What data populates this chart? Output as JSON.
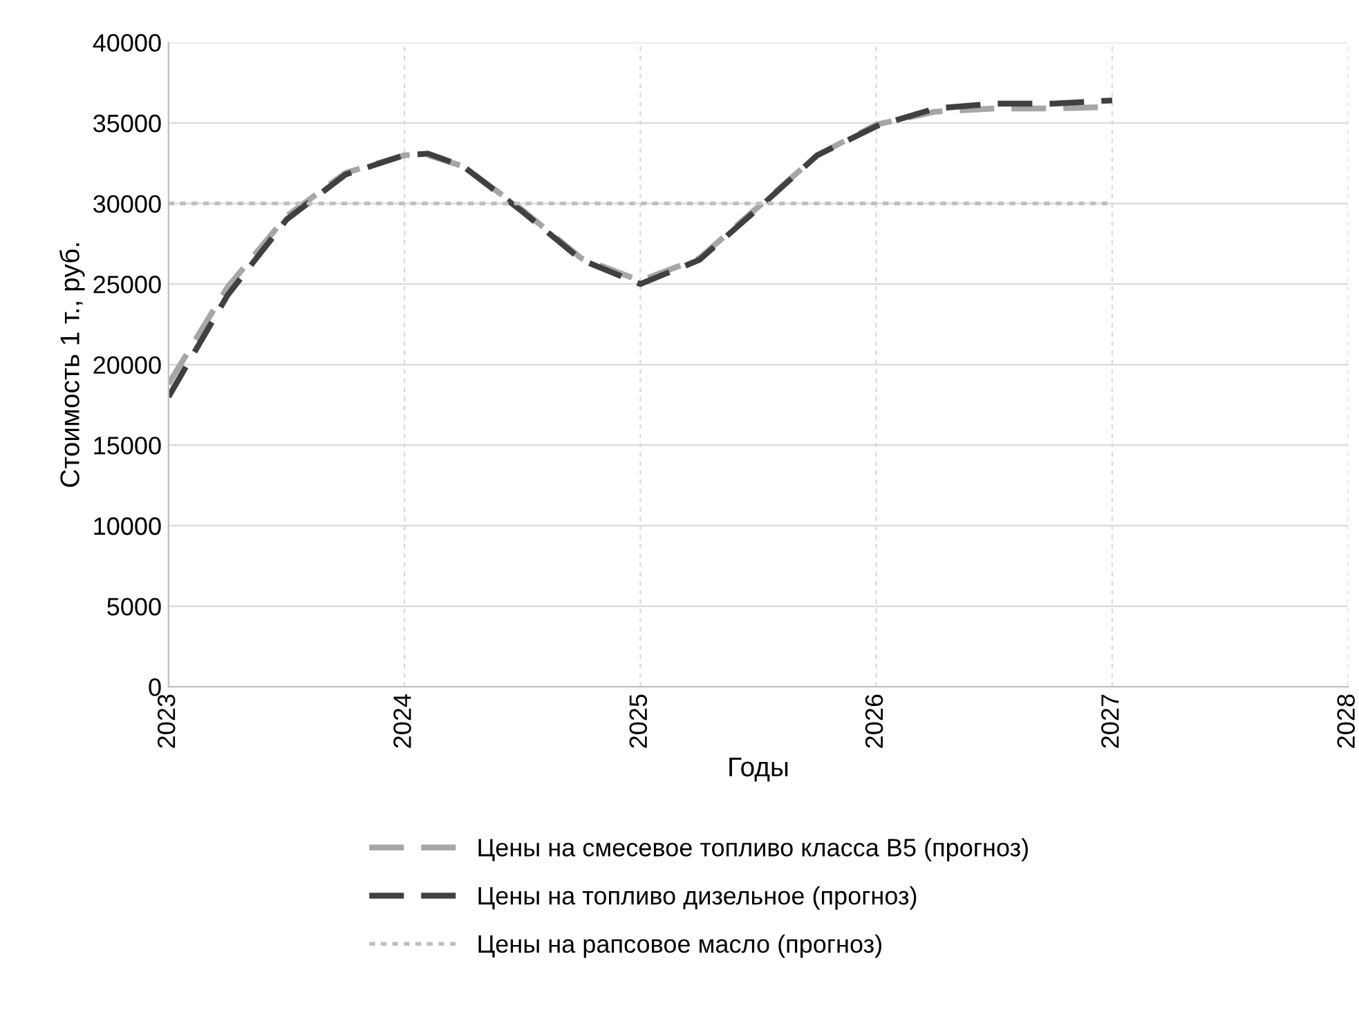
{
  "chart_data": {
    "type": "line",
    "xlabel": "Годы",
    "ylabel": "Стоимость 1 т., руб.",
    "xlim": [
      2023,
      2028
    ],
    "xticks": [
      2023,
      2024,
      2025,
      2026,
      2027,
      2028
    ],
    "ylim": [
      0,
      40000
    ],
    "yticks": [
      0,
      5000,
      10000,
      15000,
      20000,
      25000,
      30000,
      35000,
      40000
    ],
    "grid": true,
    "legend": "bottom",
    "marker": "none",
    "series": [
      {
        "name": "Цены на смесевое топливо класса B5 (прогноз)",
        "color": "#a6a6a6",
        "line_style": "dashed",
        "x": [
          2023,
          2023.25,
          2023.5,
          2023.75,
          2024,
          2024.1,
          2024.25,
          2024.5,
          2024.75,
          2025,
          2025.25,
          2025.5,
          2025.75,
          2026,
          2026.25,
          2026.5,
          2026.75,
          2027
        ],
        "values": [
          18800,
          24800,
          29200,
          31900,
          33000,
          33000,
          32300,
          29600,
          26600,
          25200,
          26600,
          29800,
          33000,
          34900,
          35700,
          35900,
          35900,
          36000
        ]
      },
      {
        "name": "Цены на топливо дизельное (прогноз)",
        "color": "#404040",
        "line_style": "dashed",
        "x": [
          2023,
          2023.25,
          2023.5,
          2023.75,
          2024,
          2024.1,
          2024.25,
          2024.5,
          2024.75,
          2025,
          2025.25,
          2025.5,
          2025.75,
          2026,
          2026.25,
          2026.5,
          2026.75,
          2027
        ],
        "values": [
          18000,
          24300,
          29000,
          31800,
          33000,
          33100,
          32300,
          29500,
          26500,
          25000,
          26500,
          29700,
          33000,
          34800,
          35900,
          36200,
          36200,
          36400
        ]
      },
      {
        "name": "Цены на рапсовое масло (прогноз)",
        "color": "#bfbfbf",
        "line_style": "dotted",
        "x": [
          2023,
          2027
        ],
        "values": [
          30000,
          30000
        ]
      }
    ]
  }
}
